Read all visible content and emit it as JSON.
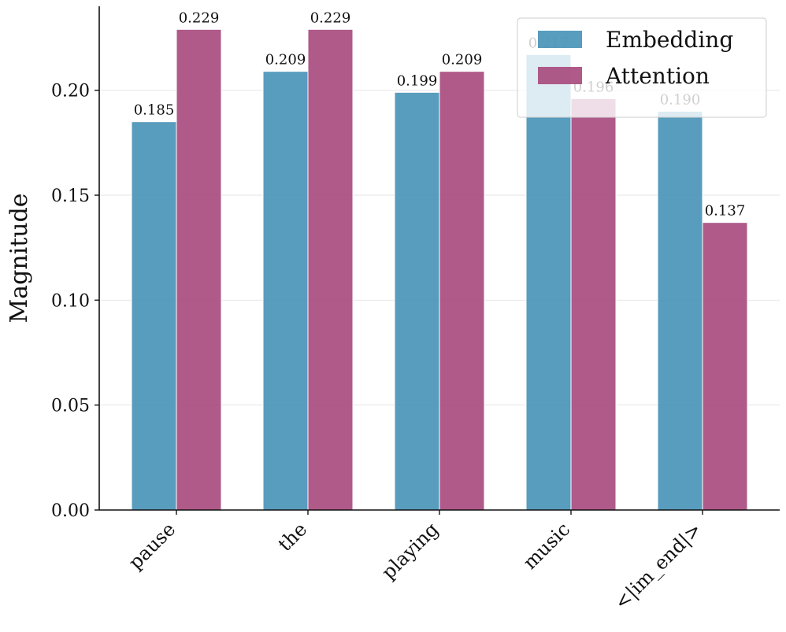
{
  "chart_data": {
    "type": "bar",
    "title": "",
    "xlabel": "",
    "ylabel": "Magnitude",
    "ylim": [
      0,
      0.24
    ],
    "yticks": [
      "0.00",
      "0.05",
      "0.10",
      "0.15",
      "0.20"
    ],
    "grid": true,
    "legend_position": "top-right",
    "categories": [
      "pause",
      "the",
      "playing",
      "music",
      "<|im_end|>"
    ],
    "series": [
      {
        "name": "Embedding",
        "color": "#4A94B8",
        "values": [
          0.185,
          0.209,
          0.199,
          0.217,
          0.19
        ],
        "labels": [
          "0.185",
          "0.209",
          "0.199",
          "0.217",
          "0.190"
        ]
      },
      {
        "name": "Attention",
        "color": "#A84C7F",
        "values": [
          0.229,
          0.229,
          0.209,
          0.196,
          0.137
        ],
        "labels": [
          "0.229",
          "0.229",
          "0.209",
          "0.196",
          "0.137"
        ]
      }
    ]
  }
}
